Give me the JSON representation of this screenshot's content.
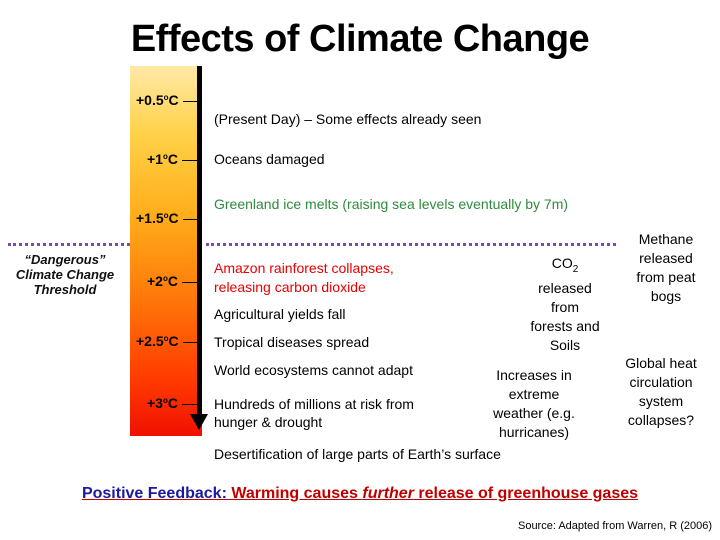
{
  "title": "Effects of Climate Change",
  "scale": [
    {
      "value": "+0.5",
      "unit": "C"
    },
    {
      "value": "+1",
      "unit": "C"
    },
    {
      "value": "+1.5",
      "unit": "C"
    },
    {
      "value": "+2",
      "unit": "C"
    },
    {
      "value": "+2.5",
      "unit": "C"
    },
    {
      "value": "+3",
      "unit": "C"
    }
  ],
  "degree_symbol": "o",
  "threshold_label": "“Dangerous” Climate Change Threshold",
  "effects": {
    "present_day": "(Present Day) – Some effects already seen",
    "oceans": "Oceans damaged",
    "greenland": "Greenland ice melts (raising sea levels eventually by 7m)",
    "amazon_line1": "Amazon rainforest collapses,",
    "amazon_line2": "releasing carbon dioxide",
    "agriculture": "Agricultural yields fall",
    "tropical": "Tropical diseases spread",
    "ecosystems": "World ecosystems cannot adapt",
    "hunger_line1": "Hundreds of millions at risk from",
    "hunger_line2": "hunger & drought",
    "desertification": "Desertification of large parts of Earth’s surface"
  },
  "feedbacks": {
    "co2_prefix": "CO",
    "co2_subscript": "2",
    "co2_rest": [
      "released",
      "from",
      "forests and",
      "Soils"
    ],
    "methane": [
      "Methane",
      "released",
      "from peat",
      "bogs"
    ],
    "weather": [
      "Increases in",
      "extreme",
      "weather (e.g.",
      "hurricanes)"
    ],
    "circulation": [
      "Global heat",
      "circulation",
      "system",
      "collapses?"
    ]
  },
  "positive_feedback": {
    "prefix": "Positive Feedback:",
    "part1": " Warming causes ",
    "emphasis": "further",
    "part2": " release of greenhouse gases"
  },
  "source": "Source: Adapted from Warren, R (2006)",
  "colors": {
    "green": "#2e8b3c",
    "red": "#e80000",
    "dotted_line": "#7b4ab0",
    "feedback_red": "#c00000",
    "feedback_blue": "#1a1aa0"
  }
}
